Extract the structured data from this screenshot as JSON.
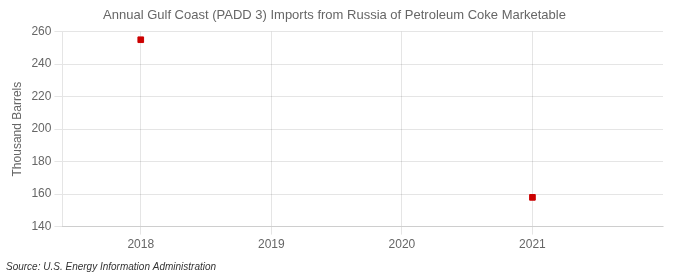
{
  "chart_data": {
    "type": "scatter",
    "title": "Annual Gulf Coast (PADD 3) Imports from Russia of Petroleum Coke Marketable",
    "ylabel": "Thousand Barrels",
    "annotations": [
      "Source: U.S. Energy Information Administration"
    ],
    "x": [
      2018,
      2021
    ],
    "values": [
      255,
      158
    ],
    "color": "#cc0000",
    "marker": "square",
    "xlim": [
      2017.4,
      2022.0
    ],
    "ylim": [
      140,
      260
    ],
    "xticks": [
      2018,
      2019,
      2020,
      2021
    ],
    "yticks": [
      140,
      160,
      180,
      200,
      220,
      240,
      260
    ],
    "grid": true
  }
}
